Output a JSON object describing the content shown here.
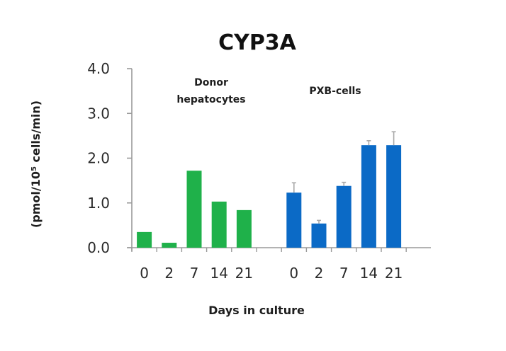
{
  "chart_data": {
    "type": "bar",
    "title": "CYP3A",
    "xlabel": "Days in culture",
    "ylabel": "(pmol/10^5 cells/min)",
    "ylabel_parts": {
      "pre": "(pmol/10",
      "sup": "5",
      "post": " cells/min)"
    },
    "ylim": [
      0,
      4.0
    ],
    "yticks": [
      "0.0",
      "1.0",
      "2.0",
      "3.0",
      "4.0"
    ],
    "grid": false,
    "legend": null,
    "groups": [
      {
        "name": "Donor hepatocytes",
        "label_lines": [
          "Donor",
          "hepatocytes"
        ],
        "color": "#1fb14a",
        "categories": [
          "0",
          "2",
          "7",
          "14",
          "21"
        ],
        "values": [
          0.35,
          0.11,
          1.72,
          1.03,
          0.84
        ],
        "errors": [
          0,
          0,
          0,
          0,
          0
        ]
      },
      {
        "name": "PXB-cells",
        "label_lines": [
          "PXB-cells"
        ],
        "color": "#0b6ac6",
        "categories": [
          "0",
          "2",
          "7",
          "14",
          "21"
        ],
        "values": [
          1.23,
          0.54,
          1.38,
          2.29,
          2.29
        ],
        "errors": [
          0.22,
          0.07,
          0.08,
          0.1,
          0.3
        ]
      }
    ]
  },
  "colors": {
    "axis": "#9a9a9a",
    "error_bar": "#a8a8a8"
  }
}
